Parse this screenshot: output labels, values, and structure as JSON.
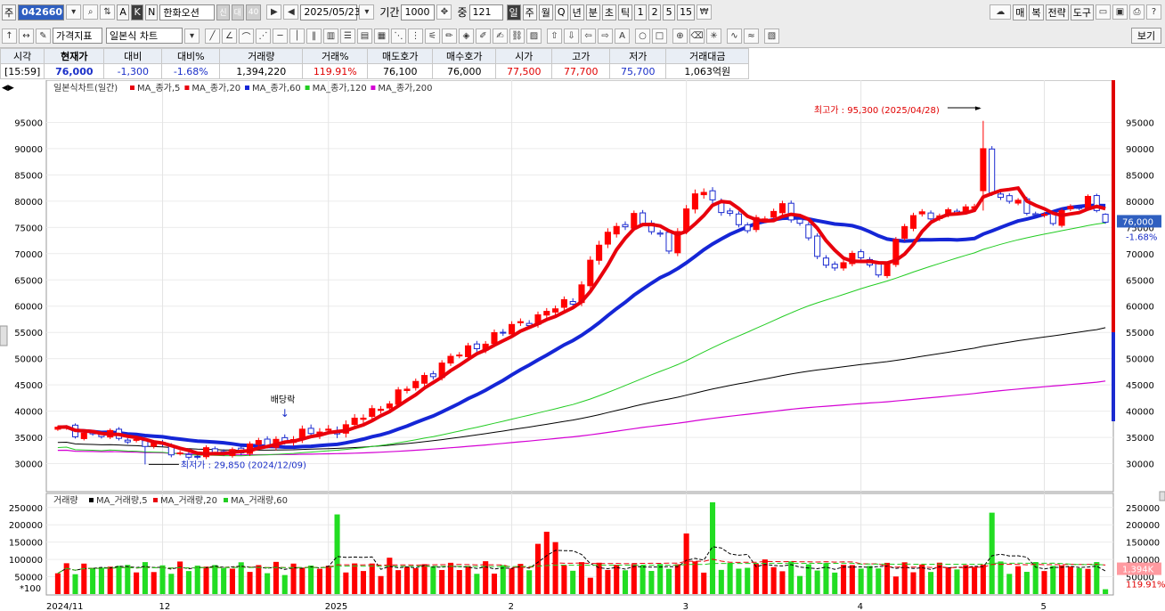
{
  "toolbar": {
    "market_label": "주",
    "code": "042660",
    "stock_name": "한화오션",
    "mode_buttons": [
      "A",
      "K",
      "N"
    ],
    "badge_labels": [
      "신",
      "대",
      "40"
    ],
    "date": "2025/05/23",
    "period_label": "기간",
    "period_value": "1000",
    "count_label": "중",
    "count_value": "121",
    "interval_buttons": [
      "일",
      "주",
      "월",
      "Q",
      "년",
      "분",
      "초",
      "틱",
      "1",
      "2",
      "5",
      "15"
    ],
    "right_buttons": [
      "매",
      "복",
      "전략",
      "도구"
    ],
    "price_indicator_label": "가격지표",
    "chart_type_label": "일본식 차트",
    "view_label": "보기"
  },
  "quote": {
    "headers": [
      "시각",
      "현재가",
      "대비",
      "대비%",
      "거래량",
      "거래%",
      "매도호가",
      "매수호가",
      "시가",
      "고가",
      "저가",
      "거래대금"
    ],
    "values": [
      "[15:59]",
      "76,000",
      "-1,300",
      "-1.68%",
      "1,394,220",
      "119.91%",
      "76,100",
      "76,000",
      "77,500",
      "77,700",
      "75,700",
      "1,063억원"
    ]
  },
  "price_legend": {
    "title": "일본식차트(일간)",
    "items": [
      {
        "label": "MA_종가,5",
        "color": "#e8000c"
      },
      {
        "label": "MA_종가,20",
        "color": "#e8000c"
      },
      {
        "label": "MA_종가,60",
        "color": "#1526d6"
      },
      {
        "label": "MA_종가,120",
        "color": "#22cc22"
      },
      {
        "label": "MA_종가,200",
        "color": "#d400d4"
      }
    ]
  },
  "volume_legend": {
    "title": "거래량",
    "items": [
      {
        "label": "MA_거래량,5",
        "color": "#000000"
      },
      {
        "label": "MA_거래량,20",
        "color": "#e8000c"
      },
      {
        "label": "MA_거래량,60",
        "color": "#22cc22"
      }
    ]
  },
  "annotations": {
    "high": "최고가 : 95,300 (2025/04/28)",
    "low": "최저가 : 29,850 (2024/12/09)",
    "dividend": "배당락"
  },
  "right_axis": {
    "price": "76,000",
    "change": "-1.68%",
    "volume": "1,394K",
    "volume_pct": "119.91%"
  },
  "volume_unit": "*100",
  "colors": {
    "up": "#ff0000",
    "down": "#1b2bd0",
    "vol_up": "#ff0000",
    "vol_down": "#22dd22",
    "ma5": "#e8000c",
    "ma60": "#1526d6",
    "ma120": "#22cc22",
    "ma200": "#d400d4"
  },
  "chart_data": {
    "type": "candlestick",
    "price_axis": {
      "ylim": [
        25000,
        100000
      ],
      "ticks": [
        30000,
        35000,
        40000,
        45000,
        50000,
        55000,
        60000,
        65000,
        70000,
        75000,
        80000,
        85000,
        90000,
        95000
      ]
    },
    "volume_axis": {
      "ylim": [
        0,
        270000
      ],
      "ticks": [
        50000,
        100000,
        150000,
        200000,
        250000
      ]
    },
    "x_ticks": [
      {
        "label": "2024/11",
        "index": 0
      },
      {
        "label": "12",
        "index": 12
      },
      {
        "label": "2025",
        "index": 31
      },
      {
        "label": "2",
        "index": 52
      },
      {
        "label": "3",
        "index": 72
      },
      {
        "label": "4",
        "index": 92
      },
      {
        "label": "5",
        "index": 113
      }
    ],
    "anchors": [
      [
        0,
        36500,
        3
      ],
      [
        8,
        34800,
        6
      ],
      [
        15,
        31500,
        8
      ],
      [
        20,
        32500,
        6
      ],
      [
        28,
        35500,
        14
      ],
      [
        33,
        37000,
        18
      ],
      [
        38,
        42000,
        10
      ],
      [
        45,
        50000,
        10
      ],
      [
        52,
        56000,
        12
      ],
      [
        59,
        61000,
        12
      ],
      [
        62,
        72000,
        18
      ],
      [
        66,
        77500,
        10
      ],
      [
        70,
        71000,
        10
      ],
      [
        73,
        82000,
        18
      ],
      [
        77,
        77500,
        10
      ],
      [
        79,
        74500,
        8
      ],
      [
        83,
        79500,
        10
      ],
      [
        85,
        75000,
        8
      ],
      [
        88,
        67500,
        10
      ],
      [
        92,
        69500,
        8
      ],
      [
        94,
        66000,
        8
      ],
      [
        96,
        72000,
        8
      ],
      [
        98,
        77500,
        10
      ],
      [
        102,
        77500,
        6
      ],
      [
        105,
        79000,
        10
      ],
      [
        106,
        91000,
        20
      ],
      [
        107,
        81000,
        10
      ],
      [
        110,
        79500,
        6
      ],
      [
        114,
        76000,
        6
      ],
      [
        116,
        79000,
        6
      ],
      [
        118,
        80500,
        5
      ],
      [
        120,
        76000,
        4
      ]
    ],
    "volume_spikes": [
      [
        3,
        88000
      ],
      [
        16,
        82000
      ],
      [
        32,
        230000
      ],
      [
        38,
        105000
      ],
      [
        55,
        145000
      ],
      [
        56,
        180000
      ],
      [
        57,
        150000
      ],
      [
        72,
        175000
      ],
      [
        75,
        265000
      ],
      [
        81,
        100000
      ],
      [
        107,
        235000
      ],
      [
        106,
        85000
      ]
    ],
    "extremes": {
      "high": {
        "value": 95300,
        "date": "2025/04/28"
      },
      "low": {
        "value": 29850,
        "date": "2024/12/09"
      }
    },
    "last": {
      "open": 77500,
      "high": 77700,
      "low": 75700,
      "close": 76000,
      "volume": 1394220
    }
  }
}
